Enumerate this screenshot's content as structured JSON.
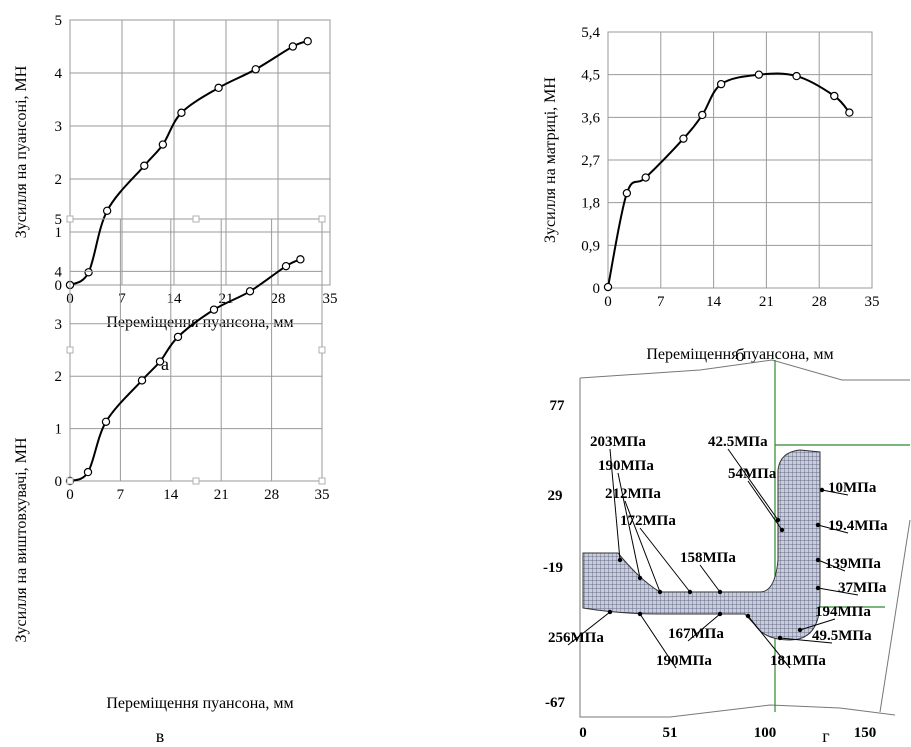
{
  "chart_data": [
    {
      "type": "line",
      "id": "a",
      "panel_label": "а",
      "xlabel": "Переміщення пуансона, мм",
      "ylabel": "Зусилля на пуансоні, МН",
      "x_ticks": [
        "0",
        "7",
        "14",
        "21",
        "28",
        "35"
      ],
      "y_ticks": [
        "0",
        "1",
        "2",
        "3",
        "4",
        "5"
      ],
      "xlim": [
        0,
        35
      ],
      "ylim": [
        0,
        5
      ],
      "grid": true,
      "series": [
        {
          "x": [
            0,
            2.5,
            5,
            10,
            12.5,
            15,
            20,
            25,
            30,
            32
          ],
          "y": [
            0,
            0.24,
            1.4,
            2.25,
            2.65,
            3.25,
            3.72,
            4.07,
            4.5,
            4.6
          ]
        }
      ]
    },
    {
      "type": "line",
      "id": "b",
      "panel_label": "б",
      "xlabel": "Переміщення пуансона, мм",
      "ylabel": "Зусилля на матриці, МН",
      "x_ticks": [
        "0",
        "7",
        "14",
        "21",
        "28",
        "35"
      ],
      "y_ticks": [
        "0",
        "0,9",
        "1,8",
        "2,7",
        "3,6",
        "4,5",
        "5,4"
      ],
      "xlim": [
        0,
        35
      ],
      "ylim": [
        0,
        5.4
      ],
      "grid": true,
      "series": [
        {
          "x": [
            0,
            2.5,
            5,
            10,
            12.5,
            15,
            20,
            25,
            30,
            32
          ],
          "y": [
            0.02,
            2.0,
            2.33,
            3.15,
            3.65,
            4.3,
            4.5,
            4.47,
            4.05,
            3.7
          ]
        }
      ]
    },
    {
      "type": "line",
      "id": "c",
      "panel_label": "в",
      "xlabel": "Переміщення пуансона, мм",
      "ylabel": "Зусилля на виштовхувачі, МН",
      "x_ticks": [
        "0",
        "7",
        "14",
        "21",
        "28",
        "35"
      ],
      "y_ticks": [
        "0",
        "1",
        "2",
        "3",
        "4",
        "5"
      ],
      "xlim": [
        0,
        35
      ],
      "ylim": [
        0,
        5
      ],
      "grid": true,
      "series": [
        {
          "x": [
            0,
            2.5,
            5,
            10,
            12.5,
            15,
            20,
            25,
            30,
            32
          ],
          "y": [
            0,
            0.17,
            1.13,
            1.92,
            2.28,
            2.75,
            3.27,
            3.62,
            4.1,
            4.23
          ]
        }
      ]
    }
  ],
  "mesh_figure": {
    "panel_label": "г",
    "x_ticks": [
      "0",
      "51",
      "100",
      "150"
    ],
    "y_ticks": [
      "77",
      "29",
      "-19",
      "-67"
    ],
    "annotations": [
      "203МПа",
      "42.5МПа",
      "190МПа",
      "54МПа",
      "10МПа",
      "212МПа",
      "29",
      "19.4МПа",
      "172МПа",
      "158МПа",
      "139МПа",
      "-19",
      "37МПа",
      "194МПа",
      "256МПа",
      "167МПа",
      "49.5МПа",
      "190МПа",
      "181МПа"
    ]
  }
}
